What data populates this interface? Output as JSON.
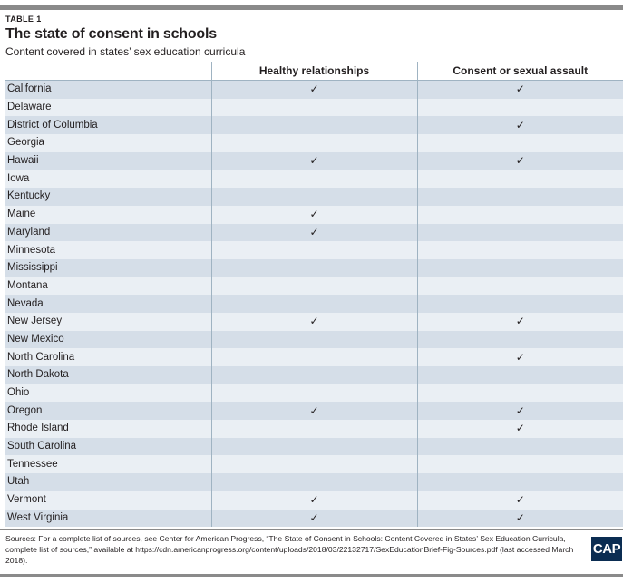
{
  "table_label": "TABLE 1",
  "title": "The state of consent in schools",
  "subtitle": "Content covered in states’ sex education curricula",
  "columns": {
    "state": "",
    "healthy": "Healthy relationships",
    "consent": "Consent or sexual assault"
  },
  "check_glyph": "✓",
  "rows": [
    {
      "state": "California",
      "healthy": "✓",
      "consent": "✓"
    },
    {
      "state": "Delaware",
      "healthy": "",
      "consent": ""
    },
    {
      "state": "District of Columbia",
      "healthy": "",
      "consent": "✓"
    },
    {
      "state": "Georgia",
      "healthy": "",
      "consent": ""
    },
    {
      "state": "Hawaii",
      "healthy": "✓",
      "consent": "✓"
    },
    {
      "state": "Iowa",
      "healthy": "",
      "consent": ""
    },
    {
      "state": "Kentucky",
      "healthy": "",
      "consent": ""
    },
    {
      "state": "Maine",
      "healthy": "✓",
      "consent": ""
    },
    {
      "state": "Maryland",
      "healthy": "✓",
      "consent": ""
    },
    {
      "state": "Minnesota",
      "healthy": "",
      "consent": ""
    },
    {
      "state": "Mississippi",
      "healthy": "",
      "consent": ""
    },
    {
      "state": "Montana",
      "healthy": "",
      "consent": ""
    },
    {
      "state": "Nevada",
      "healthy": "",
      "consent": ""
    },
    {
      "state": "New Jersey",
      "healthy": "✓",
      "consent": "✓"
    },
    {
      "state": "New Mexico",
      "healthy": "",
      "consent": ""
    },
    {
      "state": "North Carolina",
      "healthy": "",
      "consent": "✓"
    },
    {
      "state": "North Dakota",
      "healthy": "",
      "consent": ""
    },
    {
      "state": "Ohio",
      "healthy": "",
      "consent": ""
    },
    {
      "state": "Oregon",
      "healthy": "✓",
      "consent": "✓"
    },
    {
      "state": "Rhode Island",
      "healthy": "",
      "consent": "✓"
    },
    {
      "state": "South Carolina",
      "healthy": "",
      "consent": ""
    },
    {
      "state": "Tennessee",
      "healthy": "",
      "consent": ""
    },
    {
      "state": "Utah",
      "healthy": "",
      "consent": ""
    },
    {
      "state": "Vermont",
      "healthy": "✓",
      "consent": "✓"
    },
    {
      "state": "West Virginia",
      "healthy": "✓",
      "consent": "✓"
    }
  ],
  "sources": "Sources: For a complete list of sources, see Center for American Progress, “The State of Consent in Schools: Content Covered in States’ Sex Education Curricula, complete list of sources,” available at https://cdn.americanprogress.org/content/uploads/2018/03/22132717/SexEducationBrief-Fig-Sources.pdf (last accessed March 2018).",
  "logo_text": "CAP",
  "colors": {
    "row_dark": "#d5dee8",
    "row_light": "#eaeff4",
    "rule": "#8a8a8a",
    "logo_bg": "#0b2d52"
  }
}
